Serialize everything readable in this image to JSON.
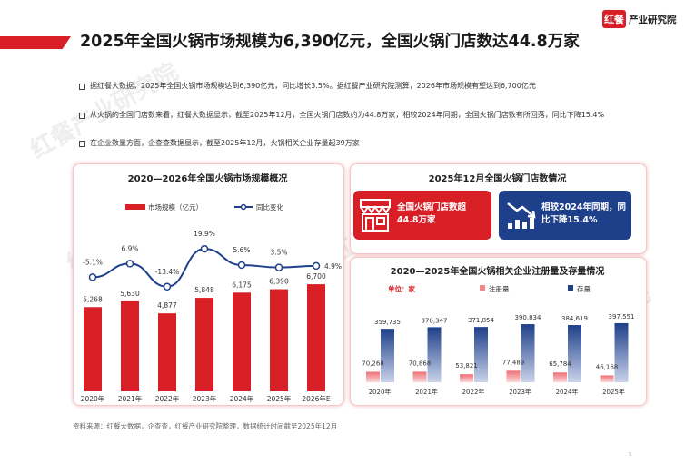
{
  "header": {
    "title": "2025年全国火锅市场规模为6,390亿元，全国火锅门店数达44.8万家",
    "logo_mark": "红餐",
    "logo_text": "产业研究院"
  },
  "bullets": [
    "据红餐大数据，2025年全国火锅市场规模达到6,390亿元，同比增长3.5%。据红餐产业研究院测算，2026年市场规模有望达到6,700亿元",
    "从火锅的全国门店数来看，红餐大数据显示，截至2025年12月，全国火锅门店数约为44.8万家，相较2024年同期，全国火锅门店数有所回落，同比下降15.4%",
    "在企业数量方面，企查查数据显示，截至2025年12月，火锅相关企业存量超39万家"
  ],
  "panels": {
    "market_title": "2020—2026年全国火锅市场规模概况",
    "stores_title": "2025年12月全国火锅门店数情况",
    "enterprise_title": "2020—2025年全国火锅相关企业注册量及存量情况"
  },
  "cards": {
    "stores_count": "全国火锅门店数超44.8万家",
    "stores_change": "相较2024年同期，同比下降15.4%"
  },
  "footer": {
    "source": "资料来源：红餐大数据，企查查，红餐产业研究院整理，数据统计时间截至2025年12月",
    "page": "5"
  },
  "colors": {
    "red": "#d81f26",
    "navy": "#1e3f8a",
    "pink": "#f08a8d"
  },
  "watermark": "红餐产业研究院",
  "chart_data": [
    {
      "type": "bar",
      "title": "2020—2026年全国火锅市场规模概况",
      "categories": [
        "2020年",
        "2021年",
        "2022年",
        "2023年",
        "2024年",
        "2025年",
        "2026年E"
      ],
      "series": [
        {
          "name": "市场规模（亿元）",
          "values": [
            5268,
            5630,
            4877,
            5848,
            6175,
            6390,
            6700
          ],
          "labels": [
            "5,268",
            "5,630",
            "4,877",
            "5,848",
            "6,175",
            "6,390",
            "6,700"
          ]
        },
        {
          "name": "同比变化",
          "type": "line",
          "values": [
            -5.1,
            6.9,
            -13.4,
            19.9,
            5.6,
            3.5,
            4.9
          ],
          "labels": [
            "-5.1%",
            "6.9%",
            "-13.4%",
            "19.9%",
            "5.6%",
            "3.5%",
            "4.9%"
          ]
        }
      ],
      "legend": "top"
    },
    {
      "type": "bar",
      "title": "2020—2025年全国火锅相关企业注册量及存量情况",
      "unit": "单位：家",
      "categories": [
        "2020年",
        "2021年",
        "2022年",
        "2023年",
        "2024年",
        "2025年"
      ],
      "series": [
        {
          "name": "注册量",
          "values": [
            70268,
            70868,
            53821,
            77489,
            65784,
            46168
          ],
          "labels": [
            "70,268",
            "70,868",
            "53,821",
            "77,489",
            "65,784",
            "46,168"
          ]
        },
        {
          "name": "存量",
          "values": [
            359735,
            370347,
            371854,
            390834,
            384619,
            397551
          ],
          "labels": [
            "359,735",
            "370,347",
            "371,854",
            "390,834",
            "384,619",
            "397,551"
          ]
        }
      ],
      "legend": "top"
    }
  ]
}
